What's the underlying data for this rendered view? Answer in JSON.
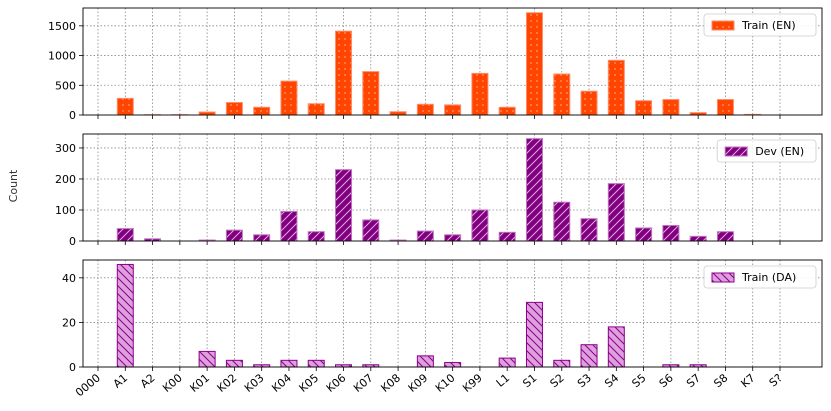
{
  "chart_data": {
    "type": "bar",
    "ylabel": "Count",
    "categories": [
      "0000",
      "A1",
      "A2",
      "K00",
      "K01",
      "K02",
      "K03",
      "K04",
      "K05",
      "K06",
      "K07",
      "K08",
      "K09",
      "K10",
      "K99",
      "L1",
      "S1",
      "S2",
      "S3",
      "S4",
      "S5",
      "S6",
      "S7",
      "S8",
      "K7",
      "S?"
    ],
    "grid": true,
    "legend_position": "top-right",
    "panels": [
      {
        "series_name": "Train (EN)",
        "color": "#ff4500",
        "edge": "#ff8c69",
        "pattern": "dots",
        "ylim": [
          0,
          1800
        ],
        "yticks": [
          0,
          500,
          1000,
          1500
        ],
        "values": [
          0,
          280,
          5,
          5,
          50,
          210,
          130,
          570,
          190,
          1410,
          730,
          55,
          180,
          170,
          700,
          130,
          1720,
          690,
          400,
          920,
          240,
          260,
          40,
          260,
          10,
          0
        ]
      },
      {
        "series_name": "Dev (EN)",
        "color": "#800080",
        "edge": "#c071c0",
        "pattern": "hatch",
        "ylim": [
          0,
          345
        ],
        "yticks": [
          0,
          100,
          200,
          300
        ],
        "values": [
          0,
          40,
          7,
          0,
          3,
          35,
          20,
          95,
          30,
          230,
          68,
          3,
          32,
          20,
          100,
          28,
          330,
          125,
          72,
          185,
          42,
          50,
          15,
          30,
          0,
          0
        ]
      },
      {
        "series_name": "Train (DA)",
        "color": "#dda0dd",
        "edge": "#8b008b",
        "pattern": "hatch-back",
        "ylim": [
          0,
          48
        ],
        "yticks": [
          0,
          20,
          40
        ],
        "values": [
          0,
          46,
          0,
          0,
          7,
          3,
          1,
          3,
          3,
          1,
          1,
          0,
          5,
          2,
          0,
          4,
          29,
          3,
          10,
          18,
          0,
          1,
          1,
          0,
          0,
          0
        ]
      }
    ]
  }
}
